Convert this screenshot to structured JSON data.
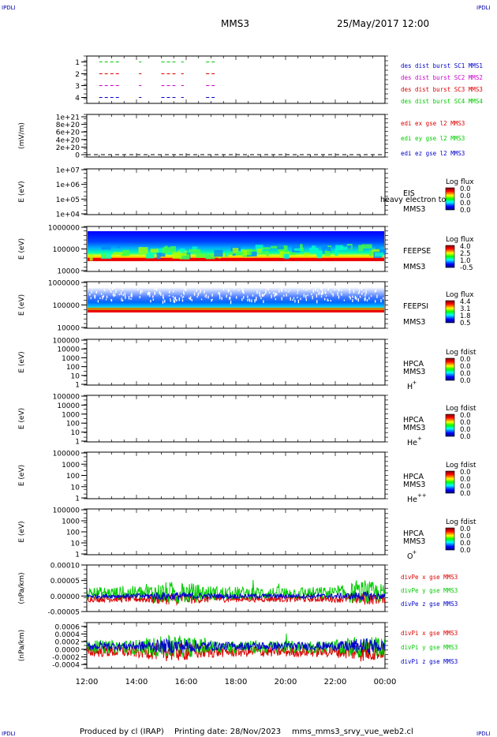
{
  "header": {
    "corner_left": "IPDLI",
    "corner_right": "IPDLI",
    "bottom_corner_left": "IPDLI",
    "bottom_corner_right": "IPDLI",
    "spacecraft": "MMS3",
    "date": "25/May/2017 12:00"
  },
  "footer": {
    "produced_by": "Produced by cl (IRAP)",
    "printing_date": "Printing date: 28/Nov/2023",
    "script_name": "mms_mms3_srvy_vue_web2.cl"
  },
  "time_axis": {
    "ticks": [
      "12:00",
      "14:00",
      "16:00",
      "18:00",
      "20:00",
      "22:00",
      "00:00"
    ],
    "range_hours": [
      12,
      24
    ]
  },
  "colors": {
    "black": "#000000",
    "blue": "#0000cc",
    "red": "#dd0000",
    "green": "#00cc00",
    "magenta": "#cc00cc"
  },
  "chart_data": [
    {
      "type": "scatter",
      "id": "burst",
      "ylabel": "",
      "ylim": [
        0.5,
        4.5
      ],
      "yticks": [
        "1",
        "2",
        "3",
        "4"
      ],
      "legend": [
        {
          "text": "des dist burst SC1 MMS1",
          "color": "#0000cc"
        },
        {
          "text": "des dist burst SC2 MMS2",
          "color": "#cc00cc"
        },
        {
          "text": "des dist burst SC3 MMS3",
          "color": "#dd0000"
        },
        {
          "text": "des dist burst SC4 MMS4",
          "color": "#00cc00"
        }
      ],
      "series": [
        {
          "level": 4,
          "color": "#00cc00",
          "segments": [
            [
              12.5,
              13.3
            ],
            [
              14.1,
              14.2
            ],
            [
              15.0,
              15.6
            ],
            [
              15.8,
              15.9
            ],
            [
              16.8,
              17.2
            ]
          ]
        },
        {
          "level": 3,
          "color": "#dd0000",
          "segments": [
            [
              12.5,
              13.3
            ],
            [
              14.1,
              14.2
            ],
            [
              15.0,
              15.6
            ],
            [
              15.8,
              15.9
            ],
            [
              16.8,
              17.2
            ]
          ]
        },
        {
          "level": 2,
          "color": "#cc00cc",
          "segments": [
            [
              12.5,
              13.3
            ],
            [
              14.1,
              14.2
            ],
            [
              15.0,
              15.6
            ],
            [
              15.8,
              15.9
            ],
            [
              16.8,
              17.2
            ]
          ]
        },
        {
          "level": 1,
          "color": "#0000cc",
          "segments": [
            [
              12.5,
              13.3
            ],
            [
              14.1,
              14.2
            ],
            [
              15.0,
              15.6
            ],
            [
              15.8,
              15.9
            ],
            [
              16.8,
              17.2
            ]
          ]
        }
      ]
    },
    {
      "type": "line",
      "id": "edi",
      "ylabel": "(mV/m)",
      "yticks": [
        "1e+21",
        "8e+20",
        "6e+20",
        "4e+20",
        "2e+20",
        "0"
      ],
      "legend": [
        {
          "text": "edi ex gse l2 MMS3",
          "color": "#dd0000"
        },
        {
          "text": "edi ey gse l2 MMS3",
          "color": "#00cc00"
        },
        {
          "text": "edi ez gse l2 MMS3",
          "color": "#0000cc"
        }
      ]
    },
    {
      "type": "heatmap",
      "id": "eis",
      "ylabel": "E (eV)",
      "yticks": [
        "1e+07",
        "1e+06",
        "1e+05",
        "1e+04"
      ],
      "labels": [
        "EIS",
        "MMS3"
      ],
      "overlay_text": "heavy electron to",
      "colorbar": {
        "title": "Log flux",
        "ticks": [
          "0.0",
          "0.0",
          "0.0",
          "0.0"
        ]
      }
    },
    {
      "type": "heatmap",
      "id": "feepse",
      "ylabel": "E (eV)",
      "yticks": [
        "1000000",
        "100000",
        "10000"
      ],
      "labels": [
        "FEEPSE",
        "MMS3"
      ],
      "colorbar": {
        "title": "Log flux",
        "ticks": [
          "4.0",
          "2.5",
          "1.0",
          "-0.5"
        ]
      }
    },
    {
      "type": "heatmap",
      "id": "feepsi",
      "ylabel": "E (eV)",
      "yticks": [
        "1000000",
        "100000",
        "10000"
      ],
      "labels": [
        "FEEPSI",
        "MMS3"
      ],
      "colorbar": {
        "title": "Log flux",
        "ticks": [
          "4.4",
          "3.1",
          "1.8",
          "0.5"
        ]
      }
    },
    {
      "type": "heatmap",
      "id": "hpca_h",
      "ylabel": "E (eV)",
      "yticks": [
        "100000",
        "10000",
        "1000",
        "100",
        "10",
        "1"
      ],
      "labels": [
        "HPCA",
        "MMS3"
      ],
      "species": "H",
      "species_sup": "+",
      "colorbar": {
        "title": "Log fdist",
        "ticks": [
          "0.0",
          "0.0",
          "0.0",
          "0.0"
        ]
      }
    },
    {
      "type": "heatmap",
      "id": "hpca_he",
      "ylabel": "E (eV)",
      "yticks": [
        "100000",
        "10000",
        "1000",
        "100",
        "10",
        "1"
      ],
      "labels": [
        "HPCA",
        "MMS3"
      ],
      "species": "He",
      "species_sup": "+",
      "colorbar": {
        "title": "Log fdist",
        "ticks": [
          "0.0",
          "0.0",
          "0.0",
          "0.0"
        ]
      }
    },
    {
      "type": "heatmap",
      "id": "hpca_hepp",
      "ylabel": "E (eV)",
      "yticks": [
        "100000",
        "1000",
        "100",
        "10",
        "1"
      ],
      "labels": [
        "HPCA",
        "MMS3"
      ],
      "species": "He",
      "species_sup": "++",
      "colorbar": {
        "title": "Log fdist",
        "ticks": [
          "0.0",
          "0.0",
          "0.0",
          "0.0"
        ]
      }
    },
    {
      "type": "heatmap",
      "id": "hpca_o",
      "ylabel": "E (eV)",
      "yticks": [
        "100000",
        "1000",
        "100",
        "10",
        "1"
      ],
      "labels": [
        "HPCA",
        "MMS3"
      ],
      "species": "O",
      "species_sup": "+",
      "colorbar": {
        "title": "Log fdist",
        "ticks": [
          "0.0",
          "0.0",
          "0.0",
          "0.0"
        ]
      }
    },
    {
      "type": "line",
      "id": "divpe",
      "ylabel": "(nPa/km)",
      "ylim": [
        -5e-05,
        0.0001
      ],
      "yticks": [
        "0.00010",
        "0.00005",
        "0.00000",
        "-0.00005"
      ],
      "legend": [
        {
          "text": "divPe x gse MMS3",
          "color": "#dd0000"
        },
        {
          "text": "divPe y gse MMS3",
          "color": "#00cc00"
        },
        {
          "text": "divPe z gse MMS3",
          "color": "#0000cc"
        }
      ]
    },
    {
      "type": "line",
      "id": "divpi",
      "ylabel": "(nPa/km)",
      "ylim": [
        -0.0005,
        0.0007
      ],
      "yticks": [
        "0.0006",
        "0.0004",
        "0.0002",
        "0.0000",
        "-0.0002",
        "-0.0004"
      ],
      "legend": [
        {
          "text": "divPi x gse MMS3",
          "color": "#dd0000"
        },
        {
          "text": "divPi y gse MMS3",
          "color": "#00cc00"
        },
        {
          "text": "divPi z gse MMS3",
          "color": "#0000cc"
        }
      ]
    }
  ]
}
